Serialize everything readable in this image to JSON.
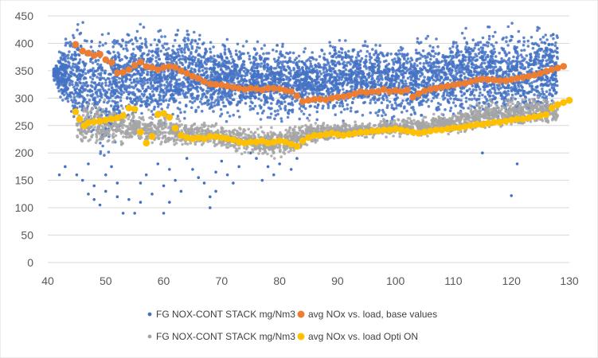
{
  "chart_data": {
    "type": "scatter",
    "title": "",
    "xlabel": "",
    "ylabel": "",
    "xlim": [
      40,
      130
    ],
    "ylim": [
      0,
      450
    ],
    "x_ticks": [
      "40",
      "50",
      "60",
      "70",
      "80",
      "90",
      "100",
      "110",
      "120",
      "130"
    ],
    "y_ticks": [
      "0",
      "50",
      "100",
      "150",
      "200",
      "250",
      "300",
      "350",
      "400",
      "450"
    ],
    "grid": "horizontal",
    "legend_position": "bottom",
    "series": [
      {
        "name": "FG NOX-CONT STACK mg/Nm3",
        "color": "#4472C4",
        "kind": "dense-scatter",
        "bands": [
          [
            41,
            330,
            360
          ],
          [
            44,
            240,
            450
          ],
          [
            47,
            200,
            450
          ],
          [
            50,
            150,
            450
          ],
          [
            53,
            230,
            450
          ],
          [
            56,
            230,
            450
          ],
          [
            60,
            230,
            450
          ],
          [
            65,
            250,
            440
          ],
          [
            70,
            250,
            420
          ],
          [
            75,
            260,
            410
          ],
          [
            80,
            240,
            420
          ],
          [
            85,
            250,
            400
          ],
          [
            90,
            250,
            420
          ],
          [
            95,
            260,
            420
          ],
          [
            100,
            240,
            420
          ],
          [
            105,
            250,
            420
          ],
          [
            110,
            250,
            440
          ],
          [
            115,
            240,
            450
          ],
          [
            120,
            230,
            450
          ],
          [
            125,
            240,
            450
          ],
          [
            128,
            260,
            450
          ]
        ],
        "outliers": [
          [
            42,
            160
          ],
          [
            43,
            175
          ],
          [
            45,
            160
          ],
          [
            46,
            150
          ],
          [
            47,
            125
          ],
          [
            47,
            180
          ],
          [
            48,
            140
          ],
          [
            48,
            115
          ],
          [
            49,
            105
          ],
          [
            50,
            130
          ],
          [
            50,
            160
          ],
          [
            51,
            175
          ],
          [
            52,
            120
          ],
          [
            52,
            145
          ],
          [
            53,
            90
          ],
          [
            54,
            115
          ],
          [
            55,
            90
          ],
          [
            56,
            145
          ],
          [
            56,
            110
          ],
          [
            57,
            160
          ],
          [
            58,
            125
          ],
          [
            59,
            180
          ],
          [
            60,
            90
          ],
          [
            60,
            140
          ],
          [
            61,
            170
          ],
          [
            61,
            110
          ],
          [
            62,
            150
          ],
          [
            63,
            130
          ],
          [
            64,
            190
          ],
          [
            65,
            170
          ],
          [
            66,
            155
          ],
          [
            67,
            145
          ],
          [
            68,
            120
          ],
          [
            68,
            100
          ],
          [
            69,
            165
          ],
          [
            69,
            130
          ],
          [
            70,
            185
          ],
          [
            71,
            160
          ],
          [
            72,
            145
          ],
          [
            73,
            175
          ],
          [
            75,
            200
          ],
          [
            76,
            190
          ],
          [
            77,
            150
          ],
          [
            78,
            175
          ],
          [
            79,
            160
          ],
          [
            80,
            180
          ],
          [
            82,
            170
          ],
          [
            83,
            190
          ],
          [
            120,
            122
          ],
          [
            121,
            180
          ],
          [
            115,
            200
          ]
        ]
      },
      {
        "name": "avg NOx vs. load, base values",
        "color": "#ED7D31",
        "points": [
          [
            44.8,
            398
          ],
          [
            46,
            386
          ],
          [
            47,
            382
          ],
          [
            48,
            378
          ],
          [
            49,
            380
          ],
          [
            50,
            370
          ],
          [
            51,
            365
          ],
          [
            52,
            346
          ],
          [
            53,
            347
          ],
          [
            54,
            352
          ],
          [
            55,
            360
          ],
          [
            56,
            366
          ],
          [
            57,
            358
          ],
          [
            58,
            356
          ],
          [
            59,
            352
          ],
          [
            60,
            356
          ],
          [
            61,
            358
          ],
          [
            62,
            356
          ],
          [
            63,
            350
          ],
          [
            64,
            345
          ],
          [
            65,
            340
          ],
          [
            66,
            336
          ],
          [
            67,
            330
          ],
          [
            68,
            326
          ],
          [
            69,
            325
          ],
          [
            70,
            324
          ],
          [
            71,
            322
          ],
          [
            72,
            320
          ],
          [
            73,
            318
          ],
          [
            74,
            316
          ],
          [
            75,
            318
          ],
          [
            76,
            317
          ],
          [
            77,
            315
          ],
          [
            78,
            318
          ],
          [
            79,
            318
          ],
          [
            80,
            317
          ],
          [
            81,
            314
          ],
          [
            82,
            312
          ],
          [
            83,
            304
          ],
          [
            84,
            294
          ],
          [
            85,
            296
          ],
          [
            86,
            298
          ],
          [
            87,
            298
          ],
          [
            88,
            297
          ],
          [
            89,
            300
          ],
          [
            90,
            302
          ],
          [
            91,
            303
          ],
          [
            92,
            305
          ],
          [
            93,
            308
          ],
          [
            94,
            312
          ],
          [
            95,
            310
          ],
          [
            96,
            312
          ],
          [
            97,
            312
          ],
          [
            98,
            316
          ],
          [
            99,
            312
          ],
          [
            100,
            314
          ],
          [
            101,
            312
          ],
          [
            102,
            315
          ],
          [
            103,
            302
          ],
          [
            104,
            308
          ],
          [
            105,
            313
          ],
          [
            106,
            316
          ],
          [
            107,
            318
          ],
          [
            108,
            320
          ],
          [
            109,
            322
          ],
          [
            110,
            324
          ],
          [
            111,
            326
          ],
          [
            112,
            327
          ],
          [
            113,
            330
          ],
          [
            114,
            333
          ],
          [
            115,
            335
          ],
          [
            116,
            334
          ],
          [
            117,
            333
          ],
          [
            118,
            332
          ],
          [
            119,
            332
          ],
          [
            120,
            334
          ],
          [
            121,
            336
          ],
          [
            122,
            338
          ],
          [
            123,
            340
          ],
          [
            124,
            342
          ],
          [
            125,
            345
          ],
          [
            126,
            349
          ],
          [
            127,
            352
          ],
          [
            128,
            355
          ],
          [
            129,
            358
          ]
        ]
      },
      {
        "name": "FG NOX-CONT STACK mg/Nm3",
        "color": "#A5A5A5",
        "kind": "dense-scatter",
        "bands": [
          [
            45,
            220,
            280
          ],
          [
            48,
            190,
            320
          ],
          [
            50,
            200,
            300
          ],
          [
            55,
            210,
            280
          ],
          [
            60,
            200,
            280
          ],
          [
            65,
            210,
            260
          ],
          [
            70,
            200,
            260
          ],
          [
            75,
            195,
            250
          ],
          [
            80,
            185,
            250
          ],
          [
            85,
            210,
            260
          ],
          [
            90,
            220,
            260
          ],
          [
            95,
            225,
            260
          ],
          [
            100,
            225,
            270
          ],
          [
            105,
            225,
            270
          ],
          [
            110,
            230,
            280
          ],
          [
            115,
            235,
            300
          ],
          [
            120,
            240,
            310
          ],
          [
            125,
            245,
            310
          ],
          [
            128,
            250,
            300
          ]
        ],
        "outliers": []
      },
      {
        "name": "avg NOx vs. load Opti ON",
        "color": "#FFC000",
        "points": [
          [
            44.8,
            275
          ],
          [
            45.5,
            262
          ],
          [
            46.3,
            250
          ],
          [
            47,
            255
          ],
          [
            48,
            257
          ],
          [
            49,
            258
          ],
          [
            50,
            260
          ],
          [
            51,
            262
          ],
          [
            52,
            264
          ],
          [
            53,
            268
          ],
          [
            54,
            282
          ],
          [
            55,
            280
          ],
          [
            56,
            238
          ],
          [
            57,
            218
          ],
          [
            58,
            230
          ],
          [
            59,
            270
          ],
          [
            60,
            272
          ],
          [
            61,
            265
          ],
          [
            62,
            245
          ],
          [
            63,
            232
          ],
          [
            64,
            228
          ],
          [
            65,
            226
          ],
          [
            66,
            228
          ],
          [
            67,
            226
          ],
          [
            68,
            230
          ],
          [
            69,
            230
          ],
          [
            70,
            228
          ],
          [
            71,
            226
          ],
          [
            72,
            224
          ],
          [
            73,
            220
          ],
          [
            74,
            218
          ],
          [
            75,
            220
          ],
          [
            76,
            220
          ],
          [
            77,
            222
          ],
          [
            78,
            218
          ],
          [
            79,
            220
          ],
          [
            80,
            222
          ],
          [
            81,
            220
          ],
          [
            82,
            216
          ],
          [
            83,
            212
          ],
          [
            84,
            222
          ],
          [
            85,
            228
          ],
          [
            86,
            232
          ],
          [
            87,
            232
          ],
          [
            88,
            234
          ],
          [
            89,
            236
          ],
          [
            90,
            234
          ],
          [
            91,
            232
          ],
          [
            92,
            234
          ],
          [
            93,
            236
          ],
          [
            94,
            238
          ],
          [
            95,
            238
          ],
          [
            96,
            240
          ],
          [
            97,
            240
          ],
          [
            98,
            242
          ],
          [
            99,
            242
          ],
          [
            100,
            244
          ],
          [
            101,
            242
          ],
          [
            102,
            240
          ],
          [
            103,
            238
          ],
          [
            104,
            236
          ],
          [
            105,
            238
          ],
          [
            106,
            240
          ],
          [
            107,
            242
          ],
          [
            108,
            242
          ],
          [
            109,
            244
          ],
          [
            110,
            246
          ],
          [
            111,
            246
          ],
          [
            112,
            248
          ],
          [
            113,
            250
          ],
          [
            114,
            252
          ],
          [
            115,
            252
          ],
          [
            116,
            254
          ],
          [
            117,
            256
          ],
          [
            118,
            256
          ],
          [
            119,
            258
          ],
          [
            120,
            260
          ],
          [
            121,
            262
          ],
          [
            122,
            262
          ],
          [
            123,
            264
          ],
          [
            124,
            266
          ],
          [
            125,
            268
          ],
          [
            126,
            270
          ],
          [
            127,
            282
          ],
          [
            128,
            288
          ],
          [
            129,
            292
          ],
          [
            130,
            296
          ]
        ]
      }
    ]
  },
  "legend": [
    {
      "label": "FG NOX-CONT STACK mg/Nm3",
      "color": "#4472C4",
      "small": true
    },
    {
      "label": "avg NOx vs. load, base values",
      "color": "#ED7D31",
      "small": false
    },
    {
      "label": "FG NOX-CONT STACK mg/Nm3",
      "color": "#A5A5A5",
      "small": true
    },
    {
      "label": "avg NOx vs. load Opti ON",
      "color": "#FFC000",
      "small": false
    }
  ]
}
